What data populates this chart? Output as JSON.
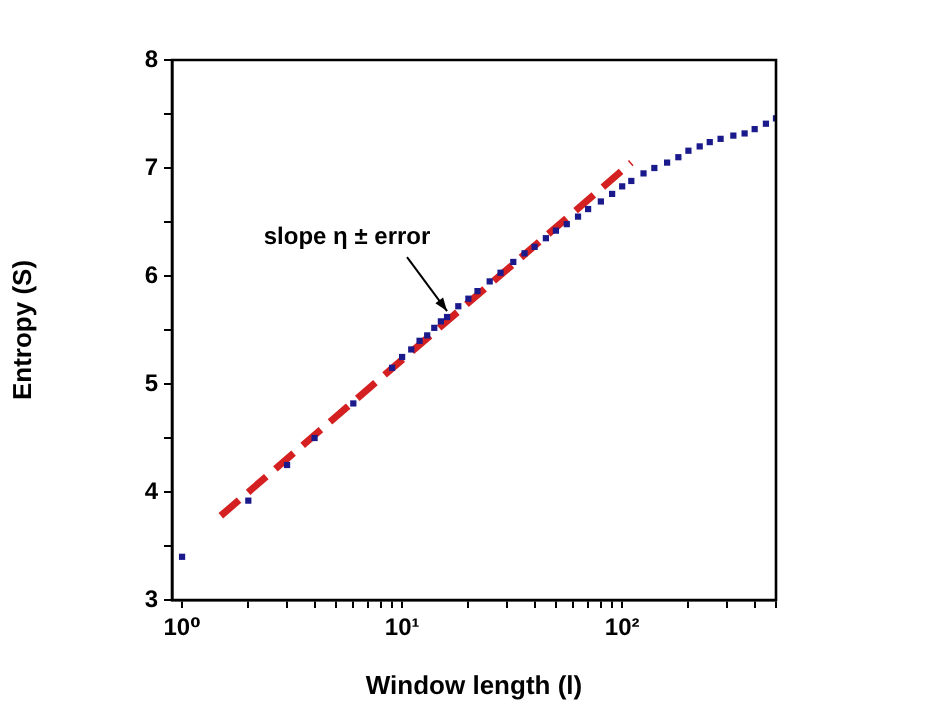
{
  "chart_data": {
    "type": "scatter",
    "xlabel": "Window length (l)",
    "ylabel": "Entropy (S)",
    "log": "x",
    "xlim": [
      0.9,
      500
    ],
    "ylim": [
      3,
      8
    ],
    "xticks": [
      {
        "value": 1,
        "label": "10⁰"
      },
      {
        "value": 2,
        "label": null
      },
      {
        "value": 3,
        "label": null
      },
      {
        "value": 4,
        "label": null
      },
      {
        "value": 5,
        "label": null
      },
      {
        "value": 6,
        "label": null
      },
      {
        "value": 7,
        "label": null
      },
      {
        "value": 8,
        "label": null
      },
      {
        "value": 9,
        "label": null
      },
      {
        "value": 10,
        "label": "10¹"
      },
      {
        "value": 20,
        "label": null
      },
      {
        "value": 30,
        "label": null
      },
      {
        "value": 40,
        "label": null
      },
      {
        "value": 50,
        "label": null
      },
      {
        "value": 60,
        "label": null
      },
      {
        "value": 70,
        "label": null
      },
      {
        "value": 80,
        "label": null
      },
      {
        "value": 90,
        "label": null
      },
      {
        "value": 100,
        "label": "10²"
      },
      {
        "value": 200,
        "label": null
      },
      {
        "value": 300,
        "label": null
      },
      {
        "value": 400,
        "label": null
      },
      {
        "value": 500,
        "label": null
      }
    ],
    "yticks": [
      3,
      {
        "value": 3.5,
        "label": null
      },
      4,
      {
        "value": 4.5,
        "label": null
      },
      5,
      {
        "value": 5.5,
        "label": null
      },
      6,
      {
        "value": 6.5,
        "label": null
      },
      7,
      {
        "value": 7.5,
        "label": null
      },
      8
    ],
    "grid": false,
    "legend": false,
    "annotations": [
      {
        "text": "slope η ± error",
        "x": 16,
        "y": 5.62
      }
    ],
    "series": [
      {
        "color": "#1a1a8c",
        "marker": "square",
        "x": [
          1,
          2,
          3,
          4,
          6,
          9,
          10,
          11,
          12,
          13,
          14,
          15,
          16,
          18,
          20,
          22,
          25,
          28,
          32,
          36,
          40,
          45,
          50,
          56,
          63,
          70,
          80,
          90,
          100,
          110,
          125,
          140,
          160,
          180,
          200,
          225,
          250,
          280,
          320,
          360,
          400,
          450,
          500
        ],
        "values": [
          3.4,
          3.92,
          4.25,
          4.5,
          4.82,
          5.15,
          5.25,
          5.32,
          5.4,
          5.45,
          5.52,
          5.58,
          5.62,
          5.72,
          5.79,
          5.86,
          5.95,
          6.03,
          6.13,
          6.21,
          6.27,
          6.35,
          6.42,
          6.48,
          6.55,
          6.62,
          6.69,
          6.76,
          6.83,
          6.88,
          6.95,
          7.0,
          7.05,
          7.1,
          7.16,
          7.2,
          7.24,
          7.27,
          7.3,
          7.32,
          7.36,
          7.41,
          7.46
        ]
      },
      {
        "type": "line",
        "color": "#d42020",
        "line_style": "dashed",
        "marker": "none",
        "x": [
          1.5,
          110
        ],
        "values": [
          3.78,
          7.05
        ]
      }
    ]
  }
}
